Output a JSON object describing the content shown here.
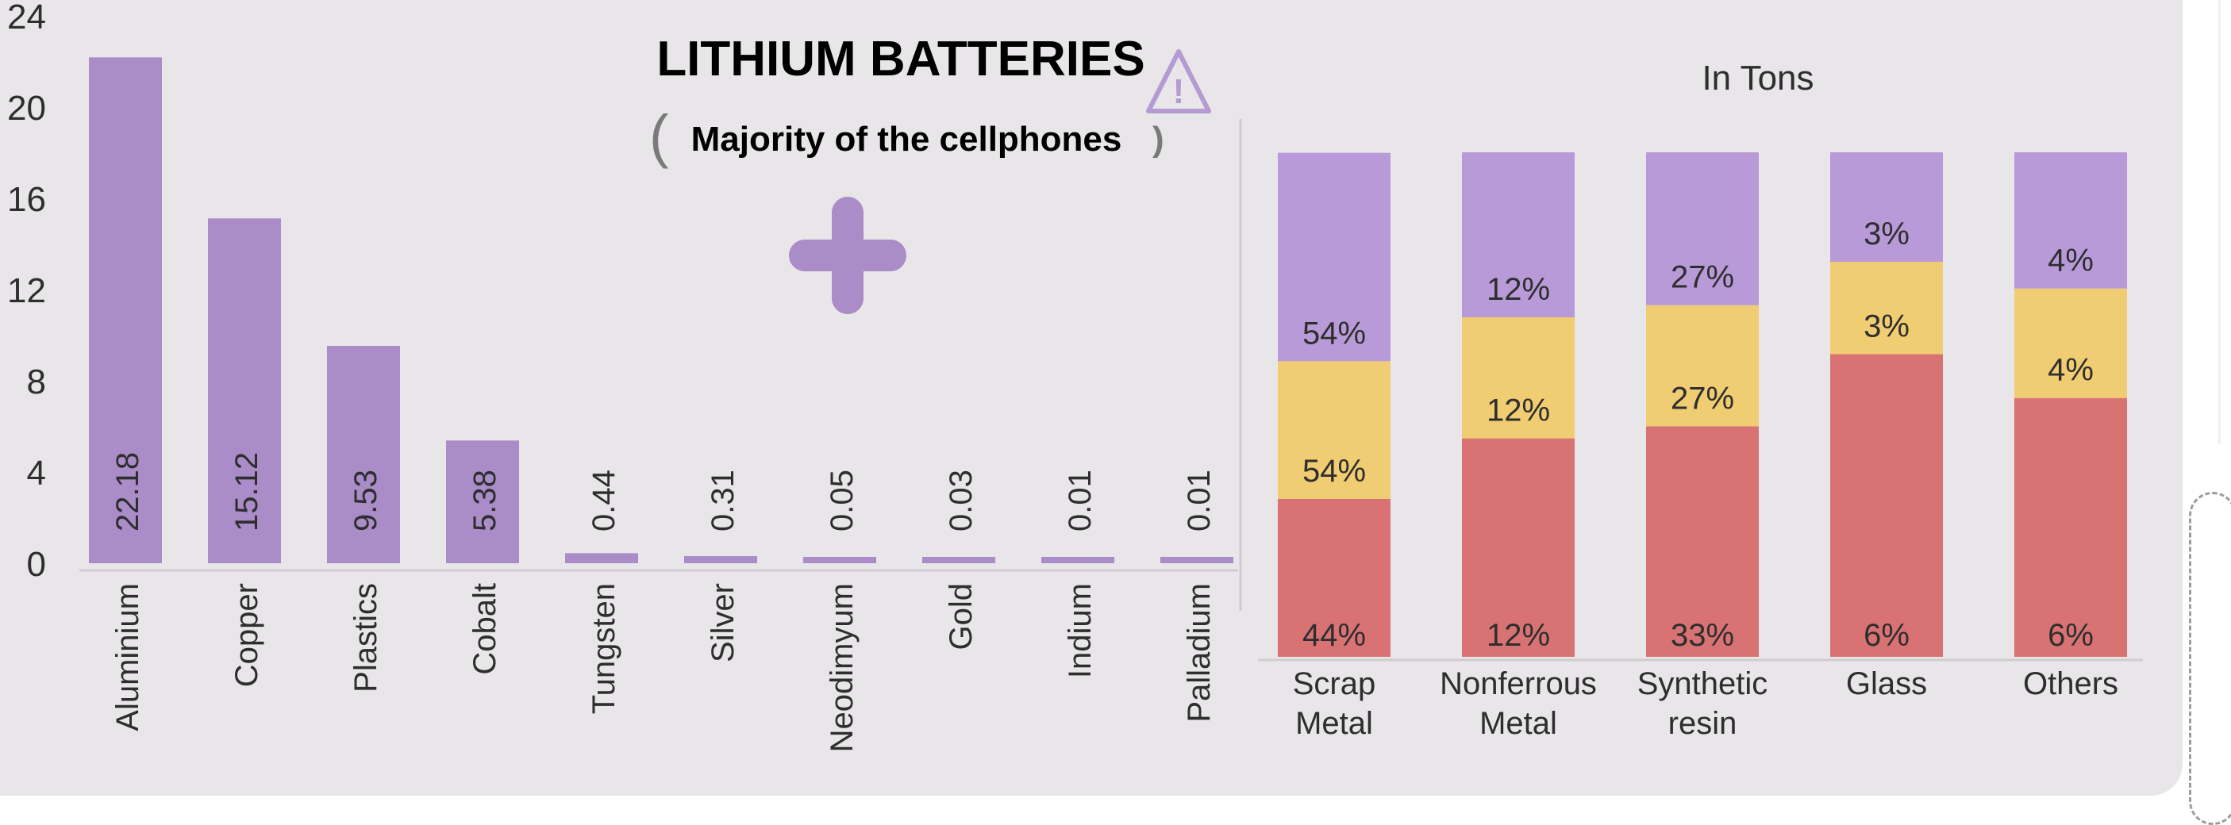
{
  "colors": {
    "panel": "#e8e6e8",
    "purple": "#a98cc8",
    "stack_top": "#b99ad8",
    "stack_mid": "#f0cc72",
    "stack_bottom": "#d97373",
    "text": "#2e2e2e",
    "title": "#7a7a7a"
  },
  "header": {
    "title": "LITHIUM BATTERIES",
    "subtitle": "Majority of the cellphones",
    "subtitle_open": "(",
    "subtitle_close": ")",
    "warning_mark": "!"
  },
  "icons": {
    "warning": "warning-triangle-icon",
    "plus": "plus-icon"
  },
  "chart_data": [
    {
      "type": "bar",
      "title": "",
      "xlabel": "",
      "ylabel": "",
      "ylim": [
        0,
        24
      ],
      "yticks": [
        0,
        4,
        8,
        12,
        16,
        20,
        24
      ],
      "grid": false,
      "categories": [
        "Aluminium",
        "Copper",
        "Plastics",
        "Cobalt",
        "Tungsten",
        "Silver",
        "Neodimyum",
        "Gold",
        "Indium",
        "Palladium"
      ],
      "values": [
        22.18,
        15.12,
        9.53,
        5.38,
        0.44,
        0.31,
        0.05,
        0.03,
        0.01,
        0.01
      ],
      "value_labels": [
        "22.18",
        "15.12",
        "9.53",
        "5.38",
        "0.44",
        "0.31",
        "0.05",
        "0.03",
        "0.01",
        "0.01"
      ]
    },
    {
      "type": "bar",
      "stacked": true,
      "title": "In Tons",
      "xlabel": "",
      "ylabel": "",
      "ylim": [
        0,
        100
      ],
      "grid": false,
      "categories": [
        [
          "Scrap",
          "Metal"
        ],
        [
          "Nonferrous",
          "Metal"
        ],
        [
          "Synthetic",
          "resin"
        ],
        [
          "Glass"
        ],
        [
          "Others"
        ]
      ],
      "series": [
        {
          "values": [
            31.3,
            43.3,
            45.7,
            60.0,
            51.3
          ],
          "labels": [
            "44%",
            "12%",
            "33%",
            "6%",
            "6%"
          ]
        },
        {
          "values": [
            27.3,
            24.0,
            24.0,
            18.3,
            21.7
          ],
          "labels": [
            "54%",
            "12%",
            "27%",
            "3%",
            "4%"
          ]
        },
        {
          "values": [
            41.3,
            32.7,
            30.3,
            21.7,
            27.0
          ],
          "labels": [
            "54%",
            "12%",
            "27%",
            "3%",
            "4%"
          ]
        }
      ]
    }
  ]
}
